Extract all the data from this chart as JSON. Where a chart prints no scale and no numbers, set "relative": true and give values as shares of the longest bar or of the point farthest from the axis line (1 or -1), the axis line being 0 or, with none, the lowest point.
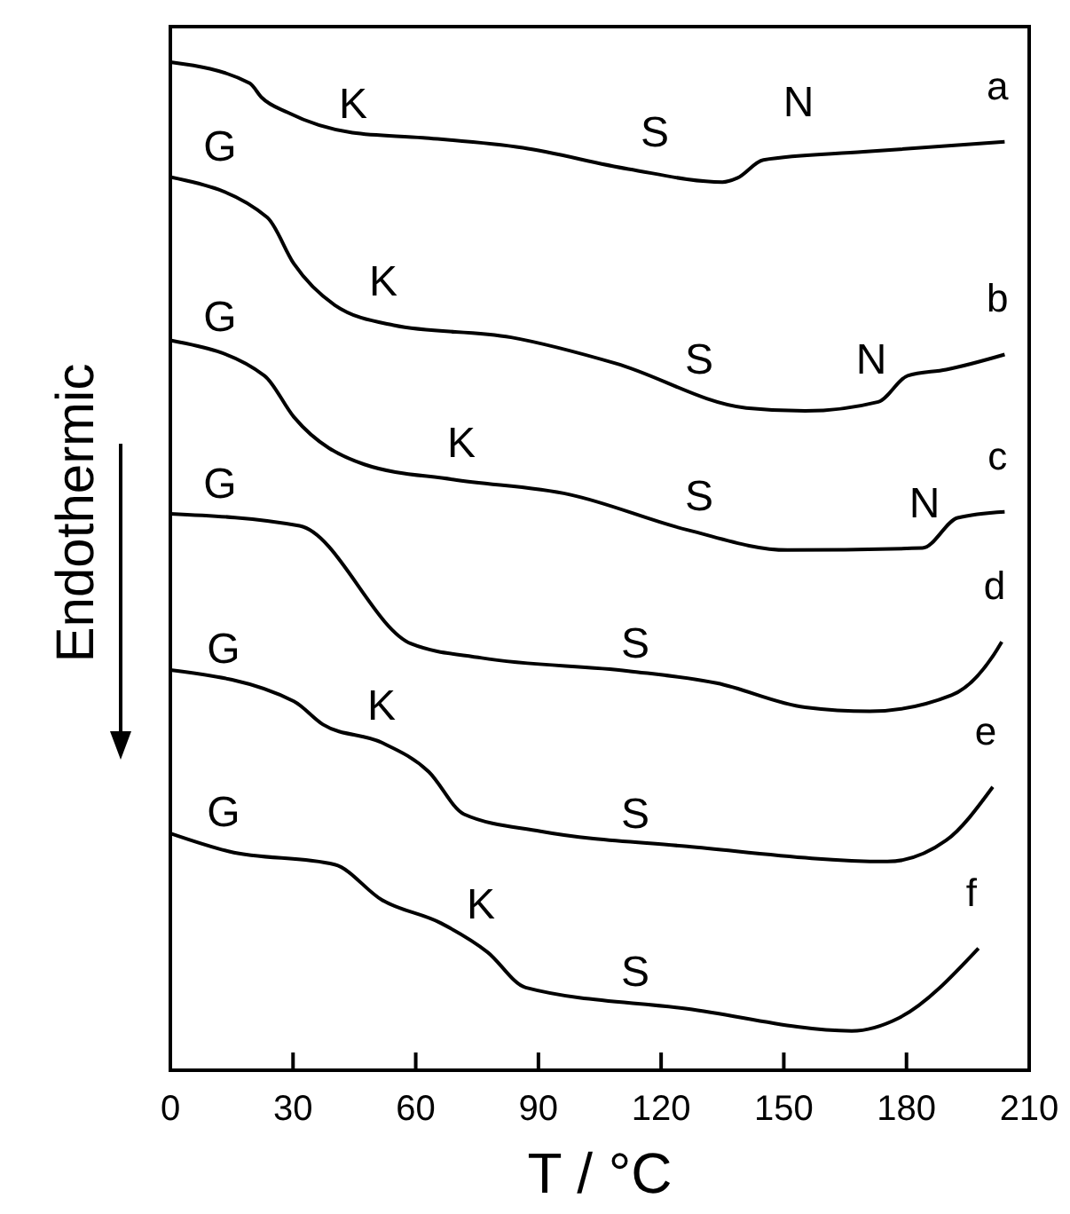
{
  "chart_data": {
    "type": "line",
    "xlabel": "T / °C",
    "ylabel": "Endothermic",
    "relative": true,
    "xlim": [
      0,
      210
    ],
    "xticks": [
      0,
      30,
      60,
      90,
      120,
      150,
      180,
      210
    ],
    "grid": false,
    "legend": false,
    "marker": "none",
    "line_style": "solid",
    "series": [
      {
        "name": "a",
        "color": "#000000",
        "x": [
          0,
          19.4,
          22.3,
          28.7,
          44.5,
          61.8,
          86.2,
          112,
          135,
          138.6,
          145,
          169.5,
          204
        ],
        "values": [
          1.0,
          0.979,
          0.965,
          0.95,
          0.93,
          0.925,
          0.915,
          0.894,
          0.881,
          0.885,
          0.903,
          0.911,
          0.921
        ]
      },
      {
        "name": "b",
        "color": "#000000",
        "x": [
          0,
          23.7,
          30.2,
          40.2,
          54.6,
          83.3,
          109,
          140.8,
          155.2,
          173.1,
          180.3,
          189.7,
          204
        ],
        "values": [
          0.886,
          0.846,
          0.8,
          0.759,
          0.739,
          0.727,
          0.701,
          0.657,
          0.654,
          0.663,
          0.689,
          0.695,
          0.71
        ]
      },
      {
        "name": "c",
        "color": "#000000",
        "x": [
          0,
          23,
          30.2,
          47.4,
          69,
          97.7,
          126.4,
          150.9,
          183.9,
          192.5,
          204
        ],
        "values": [
          0.724,
          0.689,
          0.648,
          0.601,
          0.586,
          0.571,
          0.536,
          0.516,
          0.518,
          0.548,
          0.554
        ]
      },
      {
        "name": "d",
        "color": "#000000",
        "x": [
          0,
          31.6,
          58.9,
          76.1,
          112,
          133.6,
          155.2,
          171,
          191,
          201,
          203.3
        ],
        "values": [
          0.552,
          0.54,
          0.423,
          0.409,
          0.396,
          0.384,
          0.36,
          0.356,
          0.372,
          0.41,
          0.425
        ]
      },
      {
        "name": "e",
        "color": "#000000",
        "x": [
          0,
          30.2,
          37.3,
          51.7,
          63.2,
          71.8,
          90.5,
          126.4,
          175.3,
          189.7,
          201.1
        ],
        "values": [
          0.397,
          0.366,
          0.343,
          0.325,
          0.296,
          0.254,
          0.237,
          0.222,
          0.207,
          0.228,
          0.281
        ]
      },
      {
        "name": "f",
        "color": "#000000",
        "x": [
          0,
          14.4,
          40.2,
          51.7,
          66.1,
          77.6,
          86.9,
          126.4,
          166.6,
          178.2,
          197.6
        ],
        "values": [
          0.235,
          0.217,
          0.204,
          0.169,
          0.146,
          0.117,
          0.082,
          0.061,
          0.039,
          0.052,
          0.121
        ]
      }
    ],
    "annotations": [
      "G",
      "K",
      "S",
      "N",
      "G",
      "K",
      "S",
      "N",
      "G",
      "K",
      "S",
      "N",
      "G",
      "S",
      "K",
      "G",
      "S",
      "K",
      "S"
    ]
  }
}
